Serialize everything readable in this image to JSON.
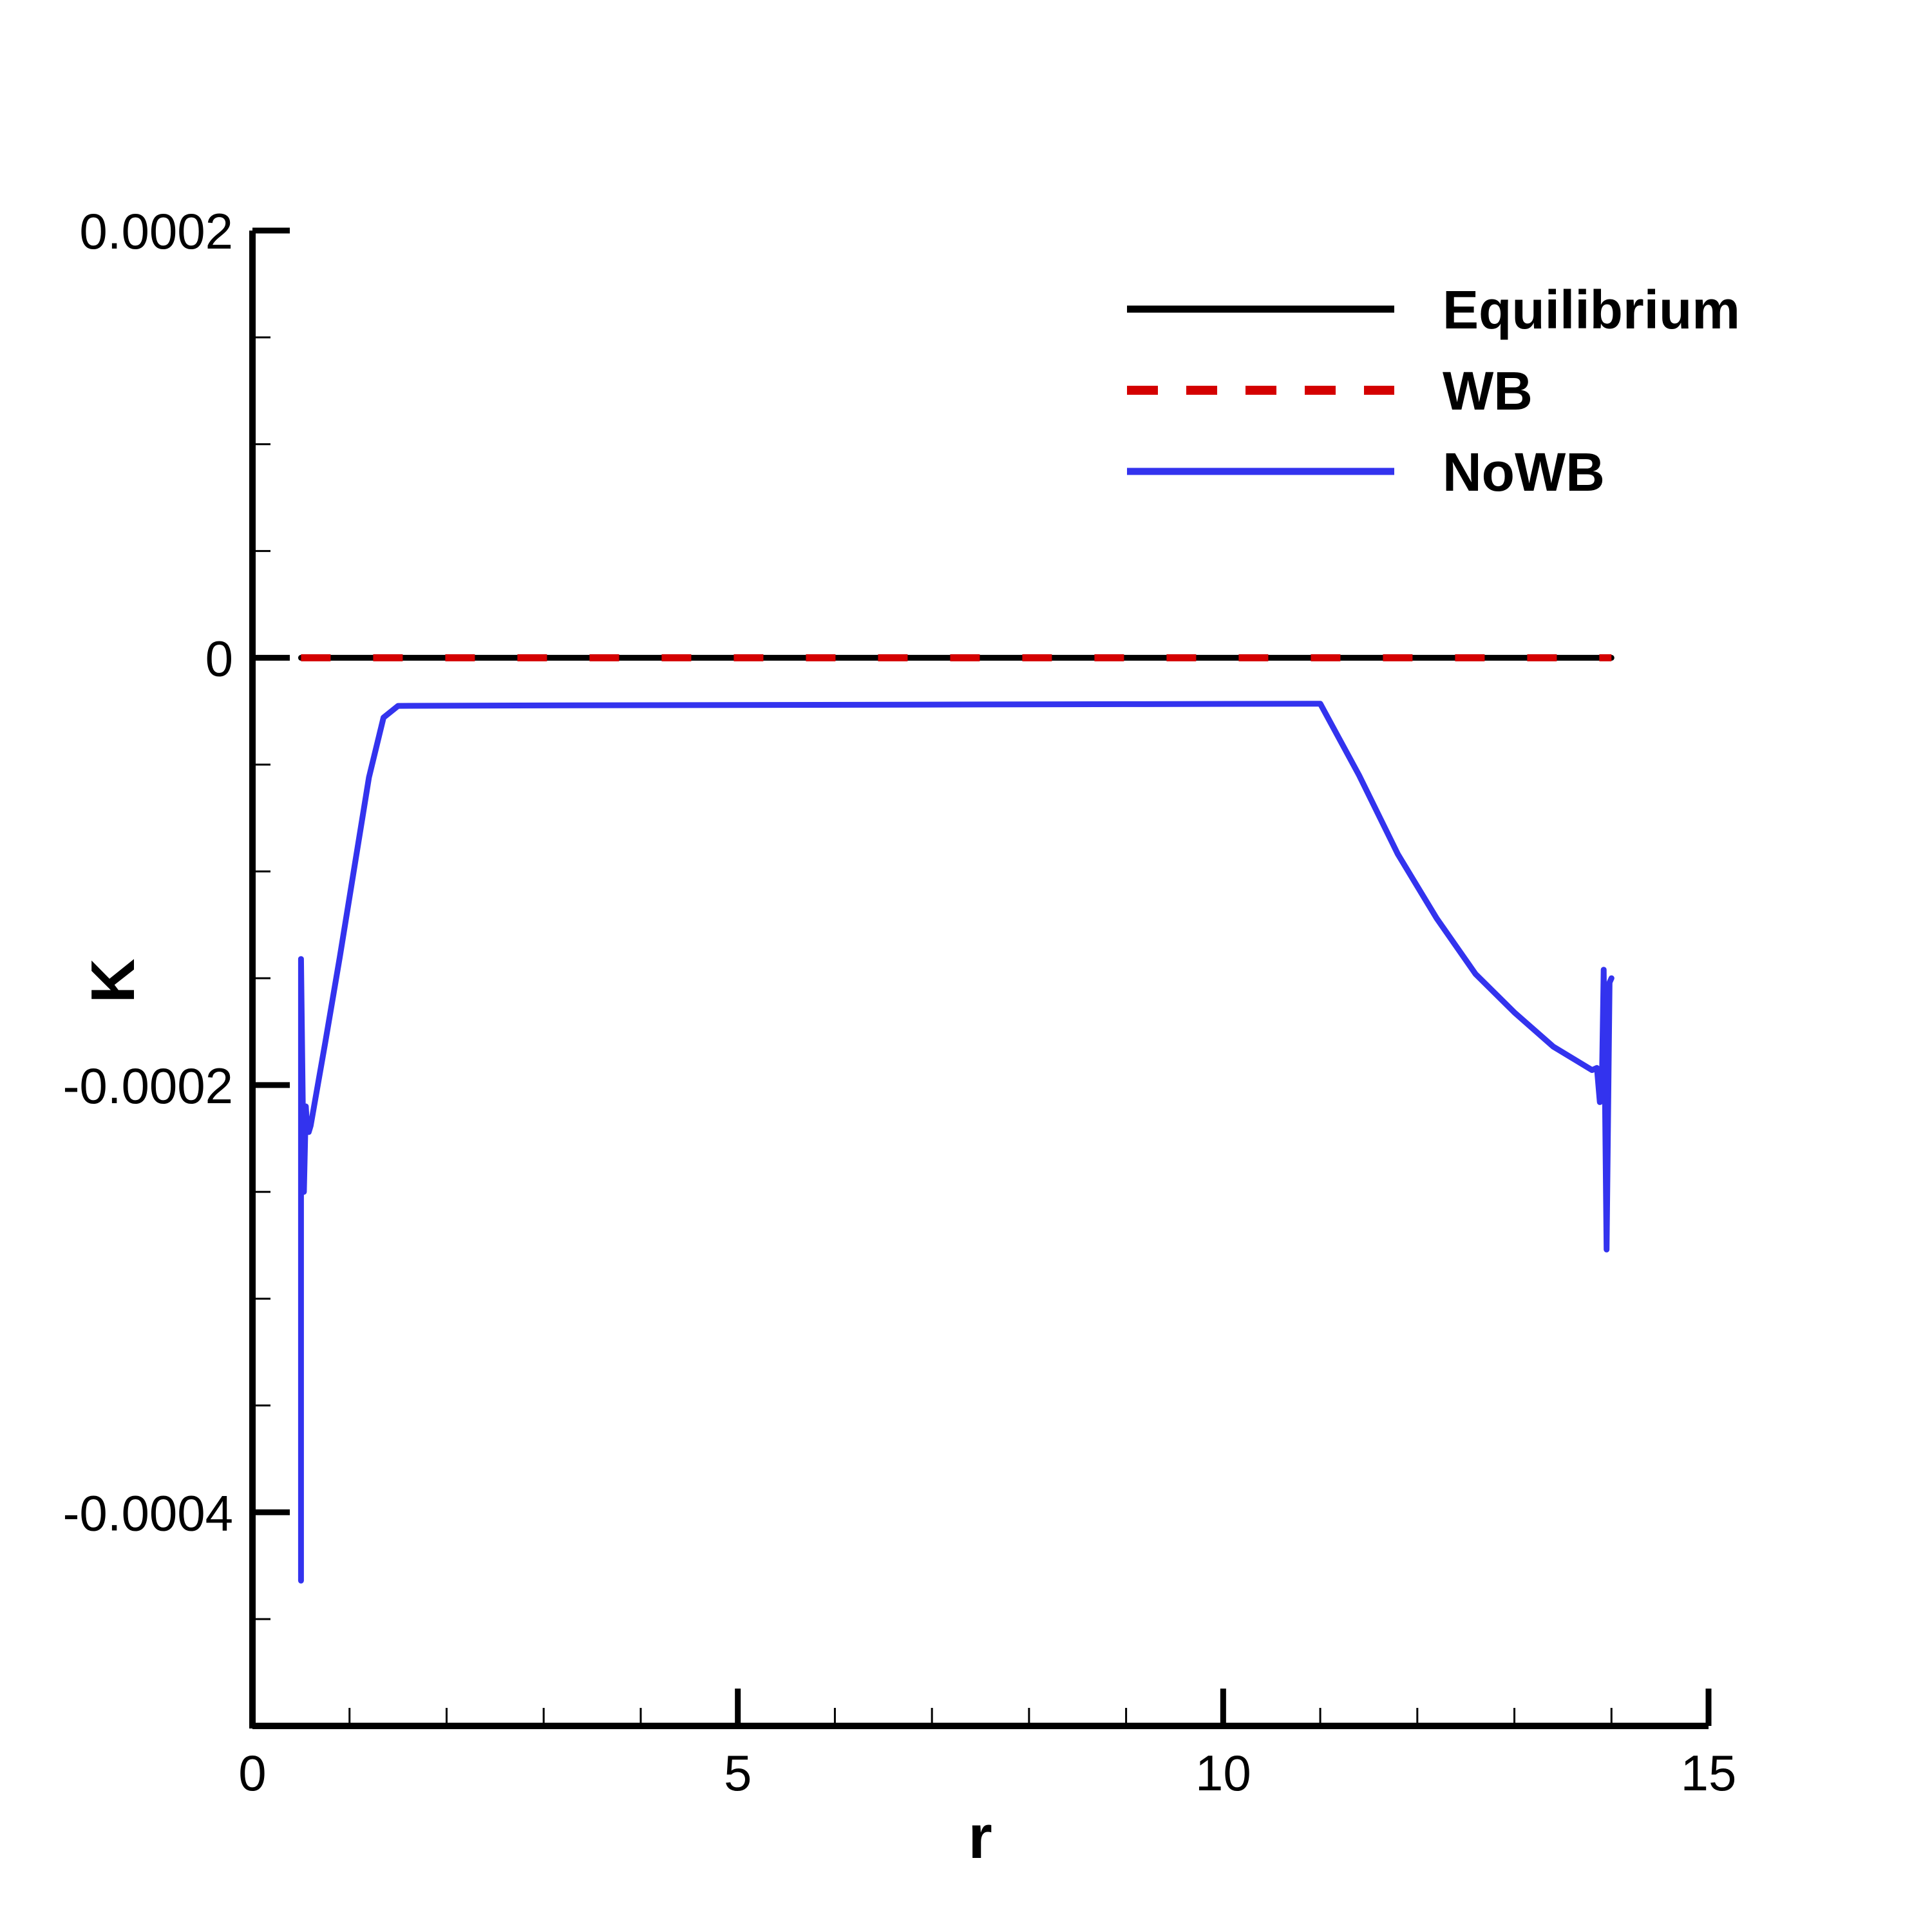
{
  "chart_data": {
    "type": "line",
    "title": "",
    "xlabel": "r",
    "ylabel": "K",
    "xlim": [
      0,
      15
    ],
    "ylim": [
      -0.0005,
      0.0002
    ],
    "x_ticks": [
      {
        "value": 0,
        "label": "0"
      },
      {
        "value": 5,
        "label": "5"
      },
      {
        "value": 10,
        "label": "10"
      },
      {
        "value": 15,
        "label": "15"
      }
    ],
    "y_ticks": [
      {
        "value": 0.0002,
        "label": "0.0002"
      },
      {
        "value": 0,
        "label": "0"
      },
      {
        "value": -0.0002,
        "label": "-0.0002"
      },
      {
        "value": -0.0004,
        "label": "-0.0004"
      }
    ],
    "x_minor_step": 1,
    "y_minor_step": 5e-05,
    "grid": false,
    "legend_position": "top-right",
    "series": [
      {
        "name": "Equilibrium",
        "color": "#000000",
        "dash": "solid",
        "x": [
          0.5,
          14
        ],
        "y": [
          0,
          0
        ]
      },
      {
        "name": "WB",
        "color": "#d40000",
        "dash": "dashed",
        "x": [
          0.5,
          14
        ],
        "y": [
          0,
          0
        ]
      },
      {
        "name": "NoWB",
        "color": "#3333ee",
        "dash": "solid",
        "x": [
          0.5,
          0.5,
          0.52,
          0.53,
          0.55,
          0.56,
          0.58,
          0.6,
          0.75,
          0.9,
          1.05,
          1.2,
          1.35,
          1.5,
          3,
          5,
          7,
          9,
          11,
          11.4,
          11.8,
          12.2,
          12.6,
          13,
          13.4,
          13.8,
          13.85,
          13.88,
          13.9,
          13.92,
          13.95,
          13.98,
          14
        ],
        "y": [
          -0.000432,
          -0.000141,
          -0.000215,
          -0.00025,
          -0.00021,
          -0.000218,
          -0.000222,
          -0.000219,
          -0.00018,
          -0.00014,
          -9.8e-05,
          -5.6e-05,
          -2.8e-05,
          -2.25e-05,
          -2.23e-05,
          -2.21e-05,
          -2.19e-05,
          -2.17e-05,
          -2.15e-05,
          -5.5e-05,
          -9.2e-05,
          -0.000122,
          -0.000148,
          -0.000166,
          -0.000182,
          -0.000193,
          -0.000192,
          -0.000208,
          -0.000204,
          -0.000146,
          -0.000277,
          -0.000152,
          -0.00015
        ]
      }
    ]
  }
}
